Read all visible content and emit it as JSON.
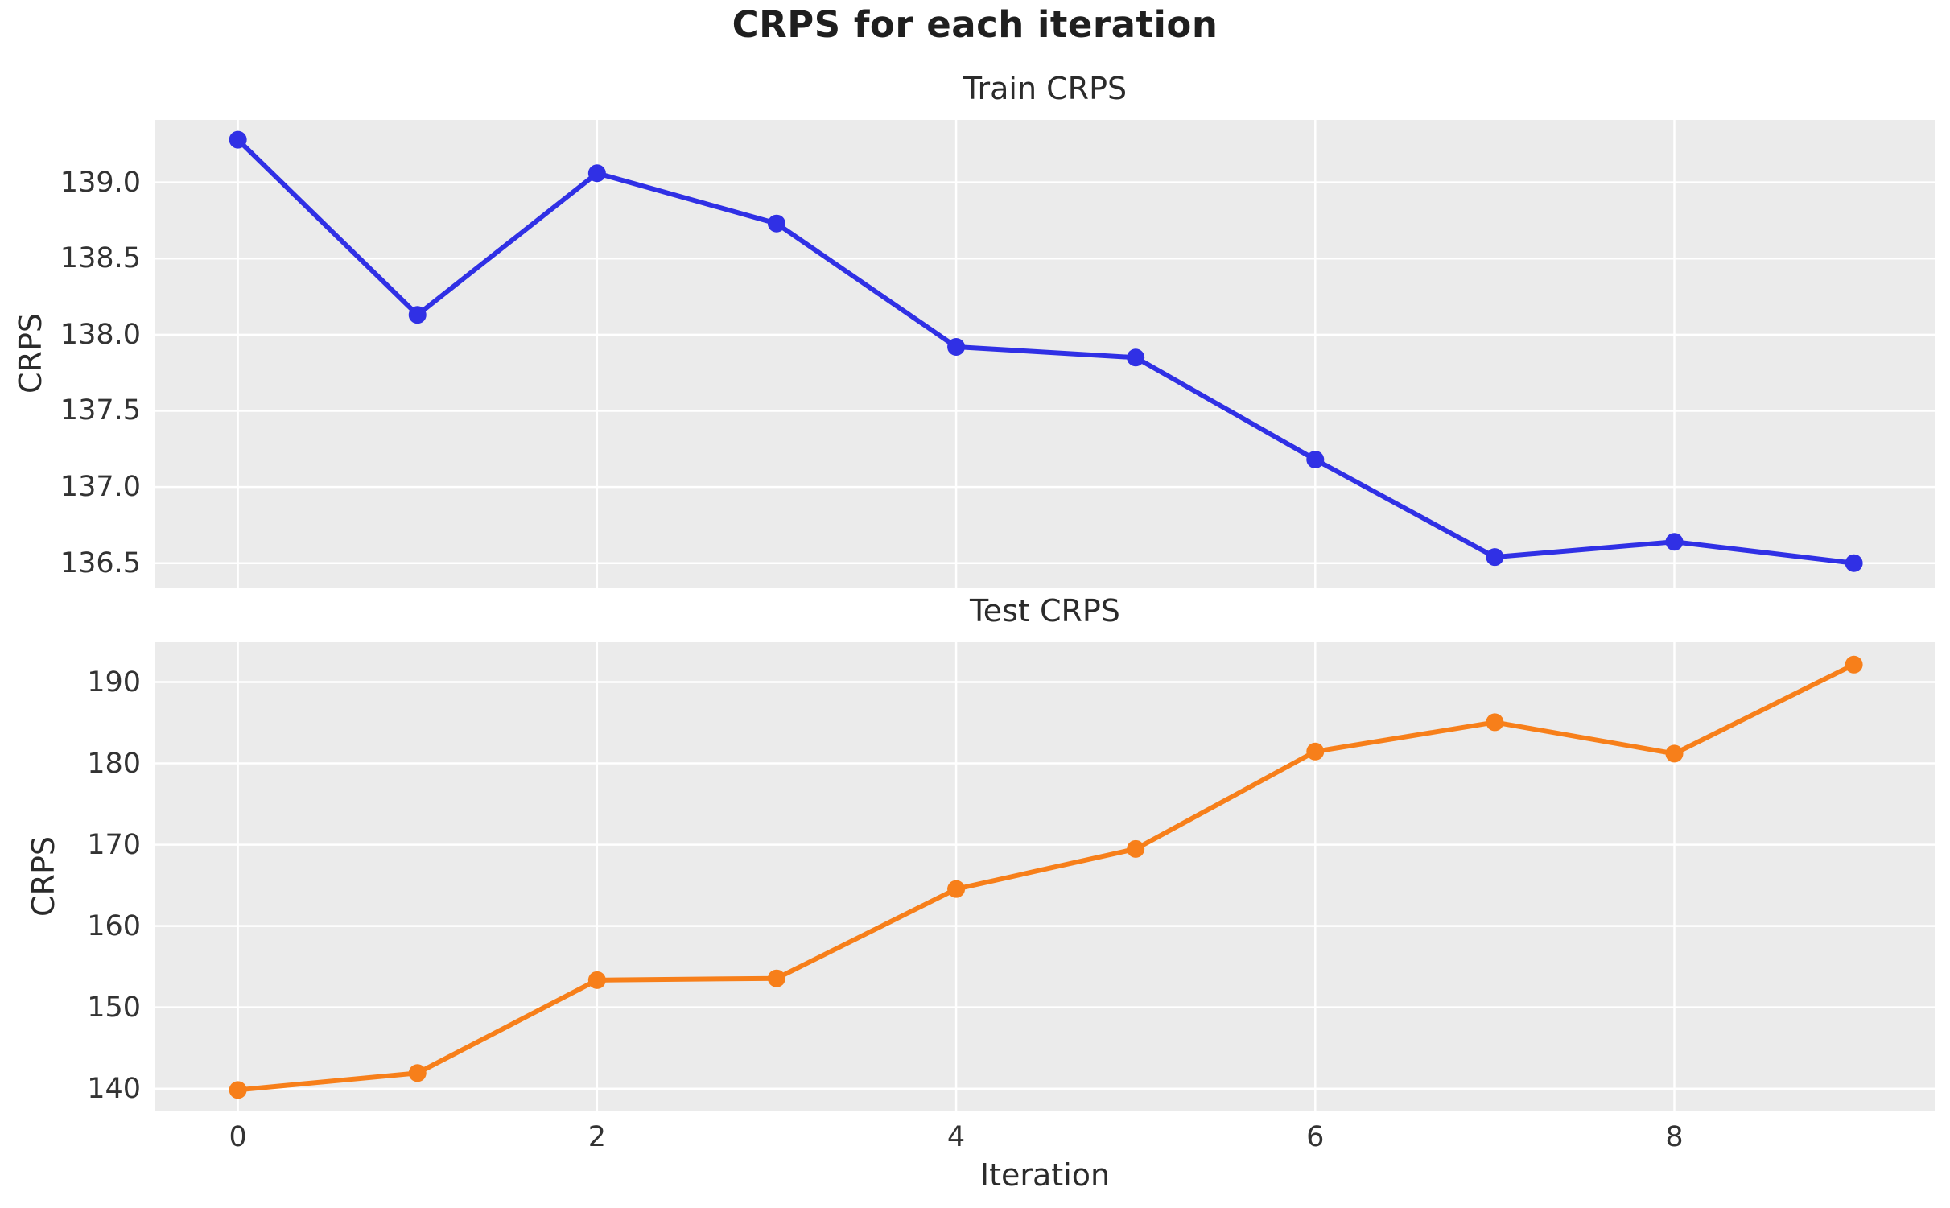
{
  "figure": {
    "title": "CRPS for each iteration",
    "background": "#ffffff",
    "axes_bg": "#ebebeb",
    "grid_color": "#ffffff",
    "text_color": "#2b2b2b",
    "tick_color": "#333333"
  },
  "chart_data": [
    {
      "type": "line",
      "title": "Train CRPS",
      "ylabel": "CRPS",
      "xlabel": "",
      "grid": true,
      "legend": "none",
      "xlim": [
        -0.46,
        9.45
      ],
      "ylim": [
        136.34,
        139.41
      ],
      "xticks": [
        0,
        2,
        4,
        6,
        8
      ],
      "xtick_labels": [],
      "yticks": [
        136.5,
        137.0,
        137.5,
        138.0,
        138.5,
        139.0
      ],
      "ytick_labels": [
        "136.5",
        "137.0",
        "137.5",
        "138.0",
        "138.5",
        "139.0"
      ],
      "series": [
        {
          "name": "train-crps",
          "color": "#3030e5",
          "marker": "circle",
          "x": [
            0,
            1,
            2,
            3,
            4,
            5,
            6,
            7,
            8,
            9
          ],
          "values": [
            139.28,
            138.13,
            139.06,
            138.73,
            137.92,
            137.85,
            137.18,
            136.54,
            136.64,
            136.5
          ]
        }
      ]
    },
    {
      "type": "line",
      "title": "Test CRPS",
      "ylabel": "CRPS",
      "xlabel": "Iteration",
      "grid": true,
      "legend": "none",
      "xlim": [
        -0.46,
        9.45
      ],
      "ylim": [
        137.2,
        194.9
      ],
      "xticks": [
        0,
        2,
        4,
        6,
        8
      ],
      "xtick_labels": [
        "0",
        "2",
        "4",
        "6",
        "8"
      ],
      "yticks": [
        140,
        150,
        160,
        170,
        180,
        190
      ],
      "ytick_labels": [
        "140",
        "150",
        "160",
        "170",
        "180",
        "190"
      ],
      "series": [
        {
          "name": "test-crps",
          "color": "#f77f1a",
          "marker": "circle",
          "x": [
            0,
            1,
            2,
            3,
            4,
            5,
            6,
            7,
            8,
            9
          ],
          "values": [
            139.84,
            141.92,
            153.35,
            153.56,
            164.55,
            169.48,
            181.46,
            185.06,
            181.2,
            192.15
          ]
        }
      ]
    }
  ]
}
